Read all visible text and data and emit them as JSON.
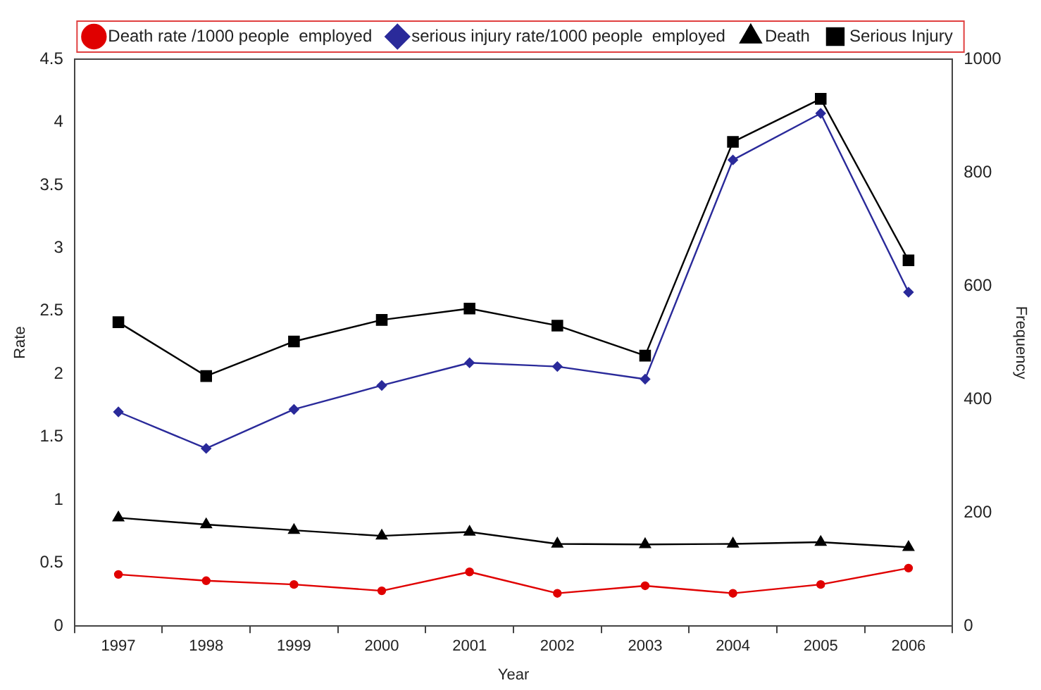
{
  "chart_data": {
    "type": "line",
    "xlabel": "Year",
    "ylabel": "Rate",
    "y2label": "Frequency",
    "categories": [
      "1997",
      "1998",
      "1999",
      "2000",
      "2001",
      "2002",
      "2003",
      "2004",
      "2005",
      "2006"
    ],
    "series": [
      {
        "name": "Death rate /1000 people  employed",
        "color": "#e00000",
        "marker": "circle",
        "values": [
          0.41,
          0.36,
          0.33,
          0.28,
          0.43,
          0.26,
          0.32,
          0.26,
          0.33,
          0.46
        ]
      },
      {
        "name": "serious injury rate/1000 people  employed",
        "color": "#2a2a9a",
        "marker": "diamond",
        "values": [
          1.7,
          1.41,
          1.72,
          1.91,
          2.09,
          2.06,
          1.96,
          3.7,
          4.07,
          2.65
        ]
      },
      {
        "name": "Death",
        "color": "#000000",
        "marker": "triangle",
        "axis": "y2",
        "values": [
          191,
          179,
          169,
          159,
          166,
          145,
          144,
          145,
          148,
          139
        ]
      },
      {
        "name": "Serious Injury",
        "color": "#000000",
        "marker": "square",
        "axis": "y2",
        "values": [
          536,
          441,
          502,
          540,
          560,
          530,
          477,
          854,
          930,
          645
        ]
      }
    ],
    "ylim": [
      0,
      4.5
    ],
    "yticks": [
      0,
      0.5,
      1,
      1.5,
      2,
      2.5,
      3,
      3.5,
      4,
      4.5
    ],
    "y2lim": [
      0,
      1000
    ],
    "y2ticks": [
      0,
      200,
      400,
      600,
      800,
      1000
    ],
    "grid": false,
    "legend": "top"
  }
}
